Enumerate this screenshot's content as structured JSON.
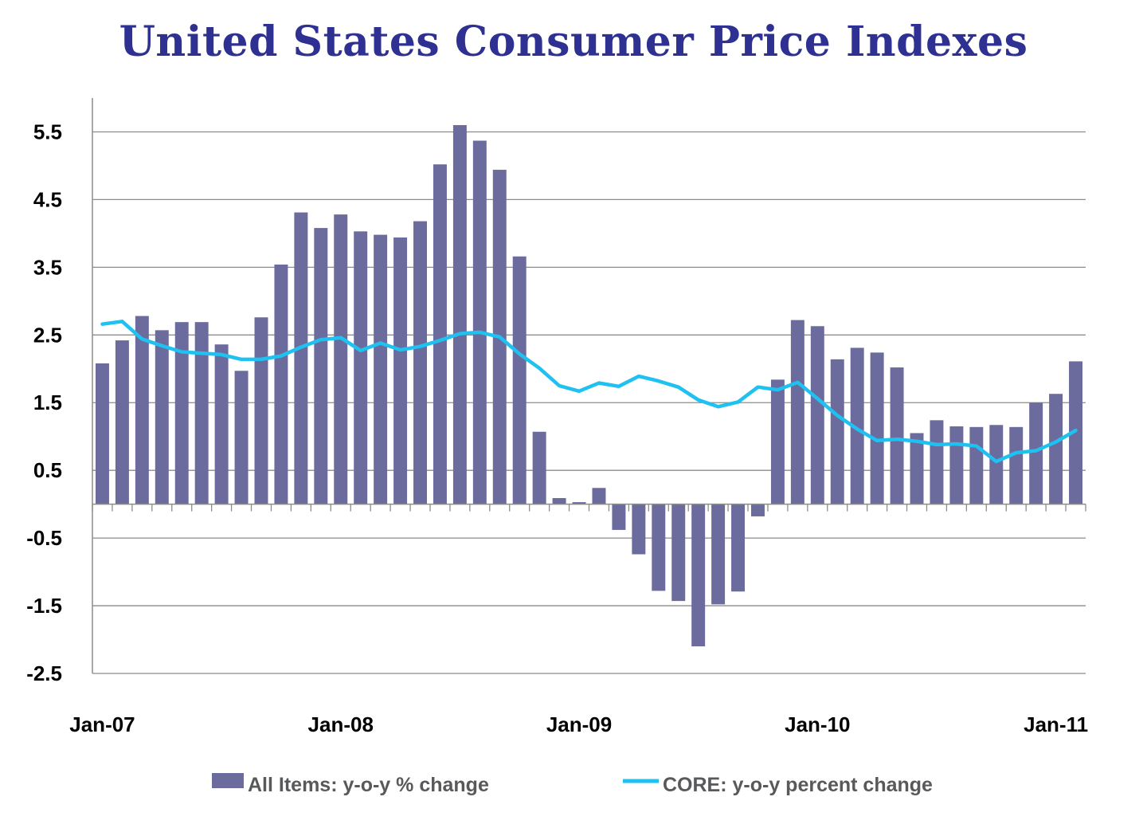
{
  "chart_data": {
    "type": "bar",
    "title": "United States Consumer Price Indexes",
    "ylim": [
      -2.5,
      6.0
    ],
    "y_ticks": [
      "5.5",
      "4.5",
      "3.5",
      "2.5",
      "1.5",
      "0.5",
      "-0.5",
      "-1.5",
      "-2.5"
    ],
    "x_tick_labels": [
      {
        "label": "Jan-07",
        "index": 0
      },
      {
        "label": "Jan-08",
        "index": 12
      },
      {
        "label": "Jan-09",
        "index": 24
      },
      {
        "label": "Jan-10",
        "index": 36
      },
      {
        "label": "Jan-11",
        "index": 48
      }
    ],
    "grid": true,
    "legend_position": "bottom",
    "series": [
      {
        "name": "All Items: y-o-y % change",
        "type": "bar",
        "color": "#6b6b9e",
        "values": [
          2.08,
          2.42,
          2.78,
          2.57,
          2.69,
          2.69,
          2.36,
          1.97,
          2.76,
          3.54,
          4.31,
          4.08,
          4.28,
          4.03,
          3.98,
          3.94,
          4.18,
          5.02,
          5.6,
          5.37,
          4.94,
          3.66,
          1.07,
          0.09,
          0.03,
          0.24,
          -0.38,
          -0.74,
          -1.28,
          -1.43,
          -2.1,
          -1.48,
          -1.29,
          -0.18,
          1.84,
          2.72,
          2.63,
          2.14,
          2.31,
          2.24,
          2.02,
          1.05,
          1.24,
          1.15,
          1.14,
          1.17,
          1.14,
          1.5,
          1.63,
          2.11
        ]
      },
      {
        "name": "CORE: y-o-y percent change",
        "type": "line",
        "color": "#1ec1f0",
        "values": [
          2.66,
          2.7,
          2.44,
          2.34,
          2.25,
          2.23,
          2.21,
          2.14,
          2.14,
          2.19,
          2.32,
          2.43,
          2.46,
          2.27,
          2.38,
          2.28,
          2.33,
          2.42,
          2.52,
          2.54,
          2.47,
          2.22,
          2.01,
          1.75,
          1.67,
          1.79,
          1.74,
          1.89,
          1.82,
          1.73,
          1.54,
          1.44,
          1.51,
          1.73,
          1.69,
          1.8,
          1.56,
          1.31,
          1.11,
          0.94,
          0.96,
          0.93,
          0.88,
          0.89,
          0.86,
          0.63,
          0.76,
          0.79,
          0.92,
          1.09
        ]
      }
    ]
  }
}
